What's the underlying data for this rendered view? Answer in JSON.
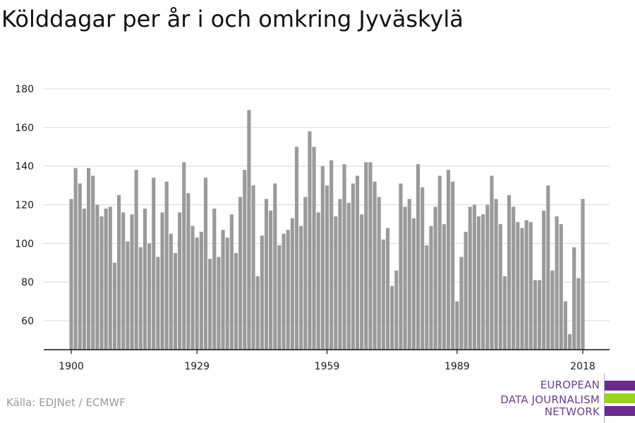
{
  "title": "Kölddagar per år i och omkring Jyväskylä",
  "source": "Källa: EDJNet / ECMWF",
  "logo": {
    "lines": [
      "EUROPEAN",
      "DATA JOURNALISM",
      "NETWORK"
    ],
    "colors": [
      "#6b2a8f",
      "#9bd21f",
      "#6b2a8f"
    ]
  },
  "colors": {
    "bar": "#9a9a9a",
    "grid": "#d9d9d9",
    "axis": "#111111"
  },
  "chart_data": {
    "type": "bar",
    "title": "Kölddagar per år i och omkring Jyväskylä",
    "xlabel": "",
    "ylabel": "",
    "x_start": 1900,
    "x_end": 2018,
    "x_ticks": [
      1900,
      1929,
      1959,
      1989,
      2018
    ],
    "y_ticks": [
      60,
      80,
      100,
      120,
      140,
      160,
      180
    ],
    "ylim": [
      45,
      180
    ],
    "grid": true,
    "values": [
      123,
      139,
      131,
      118,
      139,
      135,
      120,
      114,
      118,
      119,
      90,
      125,
      116,
      101,
      115,
      138,
      98,
      118,
      100,
      134,
      93,
      116,
      132,
      105,
      95,
      116,
      142,
      126,
      109,
      103,
      106,
      134,
      92,
      118,
      93,
      107,
      103,
      115,
      95,
      124,
      138,
      169,
      130,
      83,
      104,
      123,
      117,
      131,
      99,
      105,
      107,
      113,
      150,
      109,
      124,
      158,
      150,
      116,
      140,
      130,
      143,
      114,
      123,
      141,
      121,
      131,
      135,
      115,
      142,
      142,
      132,
      124,
      102,
      108,
      78,
      86,
      131,
      119,
      123,
      113,
      141,
      129,
      99,
      109,
      119,
      135,
      110,
      138,
      132,
      70,
      93,
      106,
      119,
      120,
      114,
      115,
      120,
      135,
      123,
      110,
      83,
      125,
      119,
      111,
      108,
      112,
      111,
      81,
      81,
      117,
      130,
      86,
      114,
      110,
      70,
      53,
      98,
      82,
      123
    ]
  }
}
